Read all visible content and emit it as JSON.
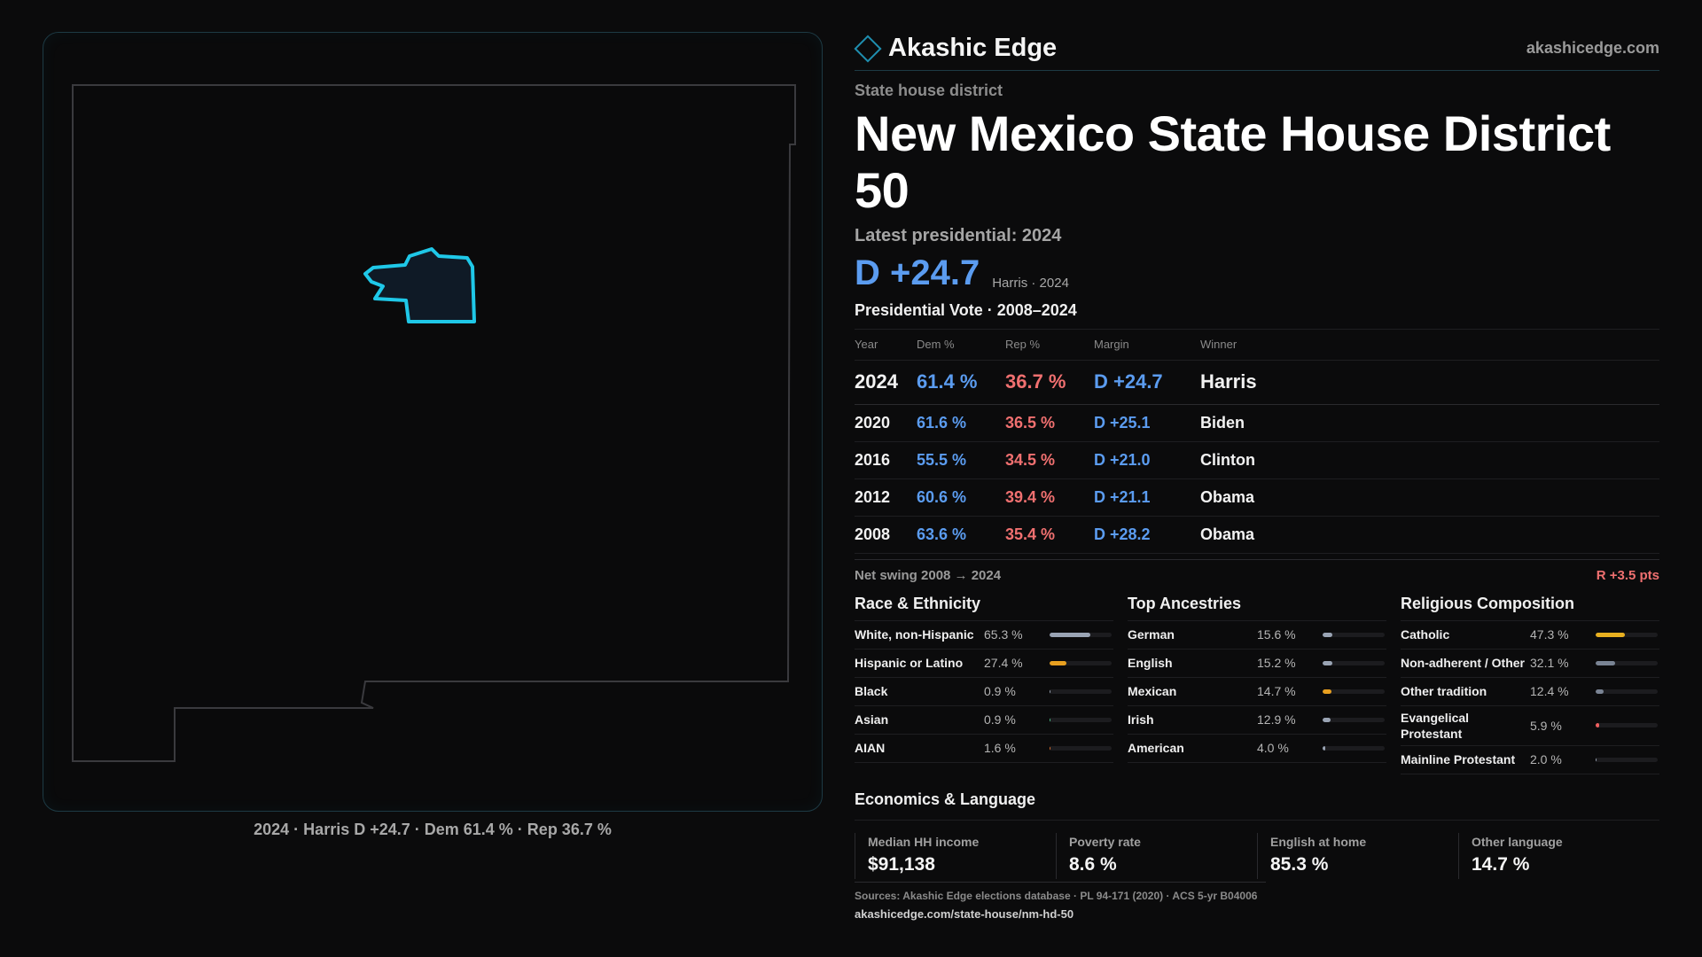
{
  "brand": {
    "name": "Akashic Edge",
    "url": "akashicedge.com"
  },
  "header": {
    "kicker": "State house district",
    "title": "New Mexico State House District 50",
    "latest": "Latest presidential: 2024",
    "margin": "D +24.7",
    "margin_sub": "Harris · 2024"
  },
  "map": {
    "caption": "2024 · Harris D +24.7 · Dem 61.4 % · Rep 36.7 %",
    "district_color": "#1fc8e8"
  },
  "presidential": {
    "title": "Presidential Vote · 2008–2024",
    "headers": [
      "Year",
      "Dem %",
      "Rep %",
      "Margin",
      "Winner"
    ],
    "rows": [
      {
        "year": "2024",
        "dem": "61.4 %",
        "rep": "36.7 %",
        "margin": "D +24.7",
        "winner": "Harris"
      },
      {
        "year": "2020",
        "dem": "61.6 %",
        "rep": "36.5 %",
        "margin": "D +25.1",
        "winner": "Biden"
      },
      {
        "year": "2016",
        "dem": "55.5 %",
        "rep": "34.5 %",
        "margin": "D +21.0",
        "winner": "Clinton"
      },
      {
        "year": "2012",
        "dem": "60.6 %",
        "rep": "39.4 %",
        "margin": "D +21.1",
        "winner": "Obama"
      },
      {
        "year": "2008",
        "dem": "63.6 %",
        "rep": "35.4 %",
        "margin": "D +28.2",
        "winner": "Obama"
      }
    ],
    "swing_label": "Net swing 2008 → 2024",
    "swing_value": "R +3.5 pts"
  },
  "race": {
    "title": "Race & Ethnicity",
    "items": [
      {
        "label": "White, non-Hispanic",
        "value": "65.3 %",
        "pct": 65.3,
        "color": "#9aa4b4"
      },
      {
        "label": "Hispanic or Latino",
        "value": "27.4 %",
        "pct": 27.4,
        "color": "#e8a020"
      },
      {
        "label": "Black",
        "value": "0.9 %",
        "pct": 0.9,
        "color": "#9aa4b4"
      },
      {
        "label": "Asian",
        "value": "0.9 %",
        "pct": 0.9,
        "color": "#4fc08a"
      },
      {
        "label": "AIAN",
        "value": "1.6 %",
        "pct": 1.6,
        "color": "#e07030"
      }
    ]
  },
  "ancestries": {
    "title": "Top Ancestries",
    "items": [
      {
        "label": "German",
        "value": "15.6 %",
        "pct": 15.6,
        "color": "#9aa4b4"
      },
      {
        "label": "English",
        "value": "15.2 %",
        "pct": 15.2,
        "color": "#9aa4b4"
      },
      {
        "label": "Mexican",
        "value": "14.7 %",
        "pct": 14.7,
        "color": "#e8a020"
      },
      {
        "label": "Irish",
        "value": "12.9 %",
        "pct": 12.9,
        "color": "#9aa4b4"
      },
      {
        "label": "American",
        "value": "4.0 %",
        "pct": 4.0,
        "color": "#9aa4b4"
      }
    ]
  },
  "religion": {
    "title": "Religious Composition",
    "items": [
      {
        "label": "Catholic",
        "value": "47.3 %",
        "pct": 47.3,
        "color": "#e8b020"
      },
      {
        "label": "Non-adherent / Other",
        "value": "32.1 %",
        "pct": 32.1,
        "color": "#7a8494"
      },
      {
        "label": "Other tradition",
        "value": "12.4 %",
        "pct": 12.4,
        "color": "#7a8494"
      },
      {
        "label": "Evangelical Protestant",
        "value": "5.9 %",
        "pct": 5.9,
        "color": "#f06060"
      },
      {
        "label": "Mainline Protestant",
        "value": "2.0 %",
        "pct": 2.0,
        "color": "#9aa4b4"
      }
    ]
  },
  "economics": {
    "title": "Economics & Language",
    "items": [
      {
        "label": "Median HH income",
        "value": "$91,138"
      },
      {
        "label": "Poverty rate",
        "value": "8.6 %"
      },
      {
        "label": "English at home",
        "value": "85.3 %"
      },
      {
        "label": "Other language",
        "value": "14.7 %"
      }
    ]
  },
  "sources": {
    "text": "Sources: Akashic Edge elections database · PL 94-171 (2020) · ACS 5-yr B04006",
    "url": "akashicedge.com/state-house/nm-hd-50"
  }
}
